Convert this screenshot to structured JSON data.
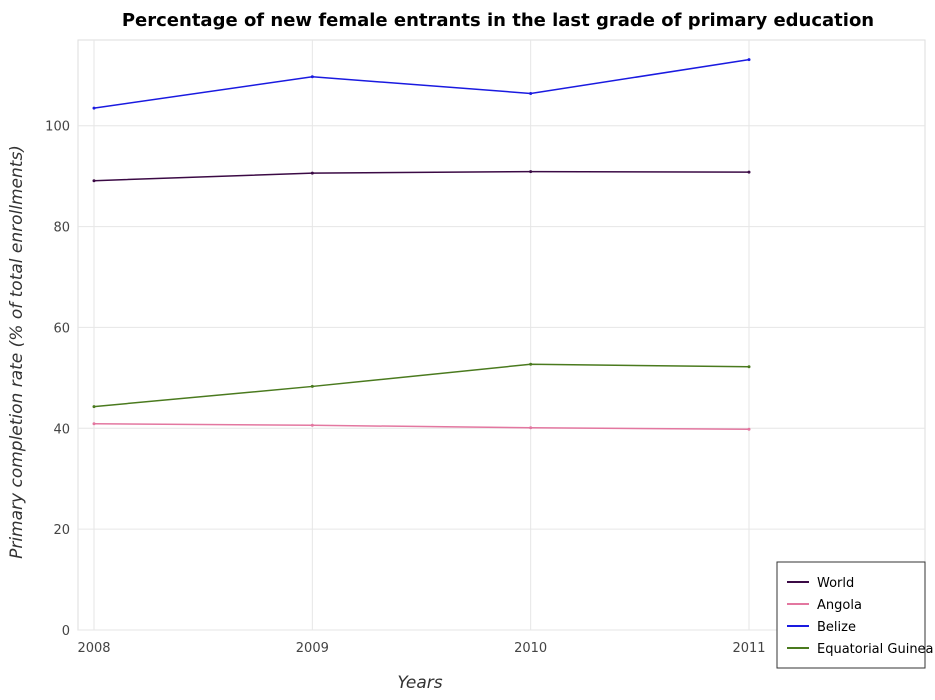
{
  "chart_data": {
    "type": "line",
    "title": "Percentage of new female entrants in the last grade of primary education",
    "xlabel": "Years",
    "ylabel": "Primary completion rate (% of total enrollments)",
    "x": [
      "2008",
      "2009",
      "2010",
      "2011"
    ],
    "ylim": [
      0,
      117
    ],
    "yticks": [
      0,
      20,
      40,
      60,
      80,
      100
    ],
    "grid": true,
    "legend_position": "bottom-right",
    "series": [
      {
        "name": "World",
        "color": "#3b0a45",
        "values": [
          89.1,
          90.6,
          90.9,
          90.8
        ]
      },
      {
        "name": "Angola",
        "color": "#e377a0",
        "values": [
          40.9,
          40.6,
          40.1,
          39.8
        ]
      },
      {
        "name": "Belize",
        "color": "#1a1ae0",
        "values": [
          103.5,
          109.7,
          106.4,
          113.1
        ]
      },
      {
        "name": "Equatorial Guinea",
        "color": "#4a7a1e",
        "values": [
          44.3,
          48.3,
          52.7,
          52.2
        ]
      }
    ]
  }
}
